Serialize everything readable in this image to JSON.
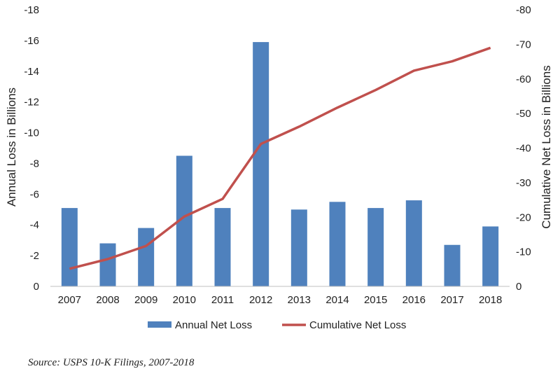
{
  "chart_data": {
    "type": "bar",
    "categories": [
      "2007",
      "2008",
      "2009",
      "2010",
      "2011",
      "2012",
      "2013",
      "2014",
      "2015",
      "2016",
      "2017",
      "2018"
    ],
    "series": [
      {
        "name": "Annual Net Loss",
        "type": "bar",
        "axis": "left",
        "values": [
          -5.1,
          -2.8,
          -3.8,
          -8.5,
          -5.1,
          -15.9,
          -5.0,
          -5.5,
          -5.1,
          -5.6,
          -2.7,
          -3.9
        ]
      },
      {
        "name": "Cumulative Net Loss",
        "type": "line",
        "axis": "right",
        "values": [
          -5.1,
          -7.9,
          -11.7,
          -20.2,
          -25.3,
          -41.2,
          -46.2,
          -51.7,
          -56.8,
          -62.4,
          -65.1,
          -69.0
        ]
      }
    ],
    "ylabel": "Annual Loss in Billions",
    "y2label": "Cumulative Net Loss in Billions",
    "ylim": [
      0,
      -18
    ],
    "y2lim": [
      0,
      -80
    ],
    "yticks": [
      "0",
      "-2",
      "-4",
      "-6",
      "-8",
      "-10",
      "-12",
      "-14",
      "-16",
      "-18"
    ],
    "y2ticks": [
      "0",
      "-10",
      "-20",
      "-30",
      "-40",
      "-50",
      "-60",
      "-70",
      "-80"
    ],
    "legend_position": "bottom",
    "colors": {
      "bar": "#4f81bd",
      "line": "#c0504d"
    }
  },
  "source": "Source: USPS 10-K Filings, 2007-2018"
}
